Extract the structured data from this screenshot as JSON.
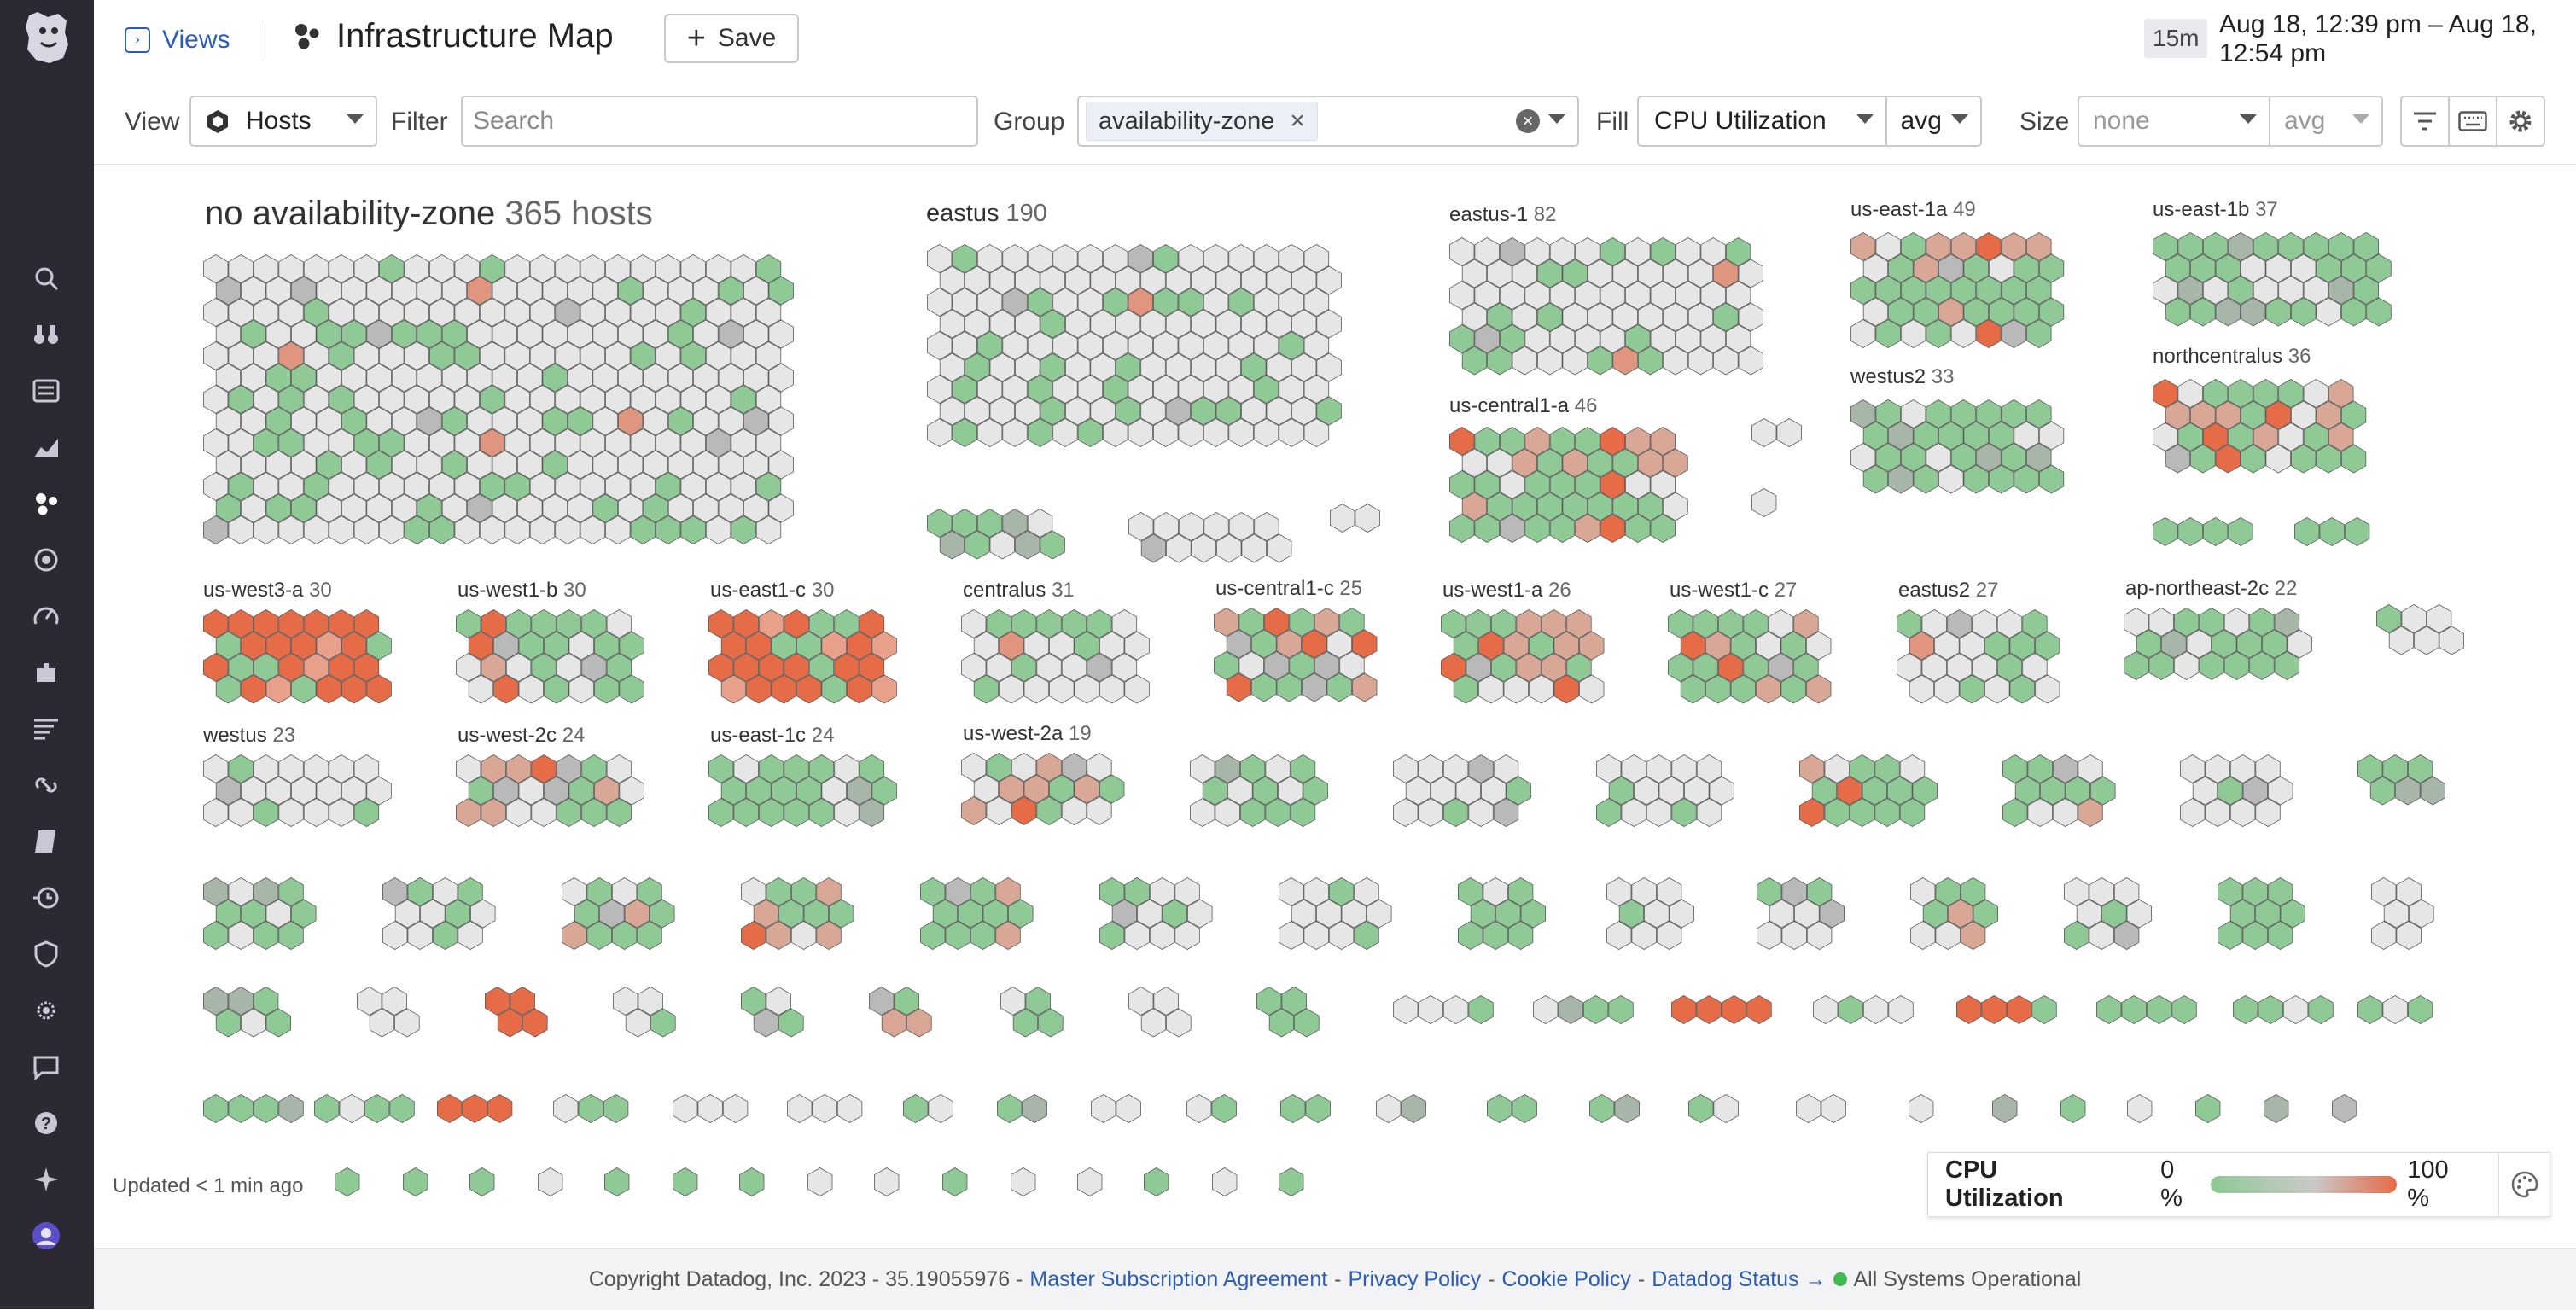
{
  "header": {
    "views_label": "Views",
    "title": "Infrastructure Map",
    "save_label": "Save",
    "time_badge": "15m",
    "time_range": "Aug 18, 12:39 pm – Aug 18, 12:54 pm"
  },
  "filters": {
    "view_label": "View",
    "view_value": "Hosts",
    "filter_label": "Filter",
    "filter_placeholder": "Search",
    "group_label": "Group",
    "group_chip": "availability-zone",
    "fill_label": "Fill",
    "fill_metric": "CPU Utilization",
    "fill_agg": "avg",
    "size_label": "Size",
    "size_metric": "none",
    "size_agg": "avg"
  },
  "colors": {
    "green": "#8fc995",
    "gray": "#e6e6e6",
    "mid": "#b9b9b9",
    "orange": "#e66b47",
    "nav_bg": "#2c2933",
    "link": "#2b5db7"
  },
  "nav_icons": [
    "search-icon",
    "binoculars-icon",
    "list-icon",
    "chart-icon",
    "infrastructure-icon",
    "apm-icon",
    "synthetics-icon",
    "integrations-icon",
    "logs-icon",
    "link-icon",
    "notebook-icon",
    "ci-icon",
    "security-icon",
    "ux-monitoring-icon",
    "chat-icon",
    "help-icon",
    "sparkle-icon",
    "user-avatar-icon"
  ],
  "groups": {
    "nozone": {
      "name": "no availability-zone",
      "count": "365 hosts"
    },
    "eastus": {
      "name": "eastus",
      "count": "190"
    },
    "eastus1": {
      "name": "eastus-1",
      "count": "82"
    },
    "useast1a": {
      "name": "us-east-1a",
      "count": "49"
    },
    "useast1b": {
      "name": "us-east-1b",
      "count": "37"
    },
    "uscentral1a": {
      "name": "us-central1-a",
      "count": "46"
    },
    "westus2": {
      "name": "westus2",
      "count": "33"
    },
    "northcentralus": {
      "name": "northcentralus",
      "count": "36"
    },
    "uswest3a": {
      "name": "us-west3-a",
      "count": "30"
    },
    "uswest1b": {
      "name": "us-west1-b",
      "count": "30"
    },
    "useast1c": {
      "name": "us-east1-c",
      "count": "30"
    },
    "centralus": {
      "name": "centralus",
      "count": "31"
    },
    "uscentral1c": {
      "name": "us-central1-c",
      "count": "25"
    },
    "uswest1a": {
      "name": "us-west1-a",
      "count": "26"
    },
    "uswest1c": {
      "name": "us-west1-c",
      "count": "27"
    },
    "eastus2": {
      "name": "eastus2",
      "count": "27"
    },
    "apnortheast2c": {
      "name": "ap-northeast-2c",
      "count": "22"
    },
    "westus": {
      "name": "westus",
      "count": "23"
    },
    "uswest2c": {
      "name": "us-west-2c",
      "count": "24"
    },
    "useast1c2": {
      "name": "us-east-1c",
      "count": "24"
    },
    "uswest2a": {
      "name": "us-west-2a",
      "count": "19"
    }
  },
  "status": {
    "updated": "Updated < 1 min ago"
  },
  "legend": {
    "title": "CPU Utilization",
    "min": "0 %",
    "max": "100 %"
  },
  "footer": {
    "copyright": "Copyright Datadog, Inc. 2023 - 35.19055976 -",
    "msa": "Master Subscription Agreement",
    "privacy": "Privacy Policy",
    "cookie": "Cookie Policy",
    "status_link": "Datadog Status →",
    "systems": "All Systems Operational",
    "sep": "-"
  }
}
